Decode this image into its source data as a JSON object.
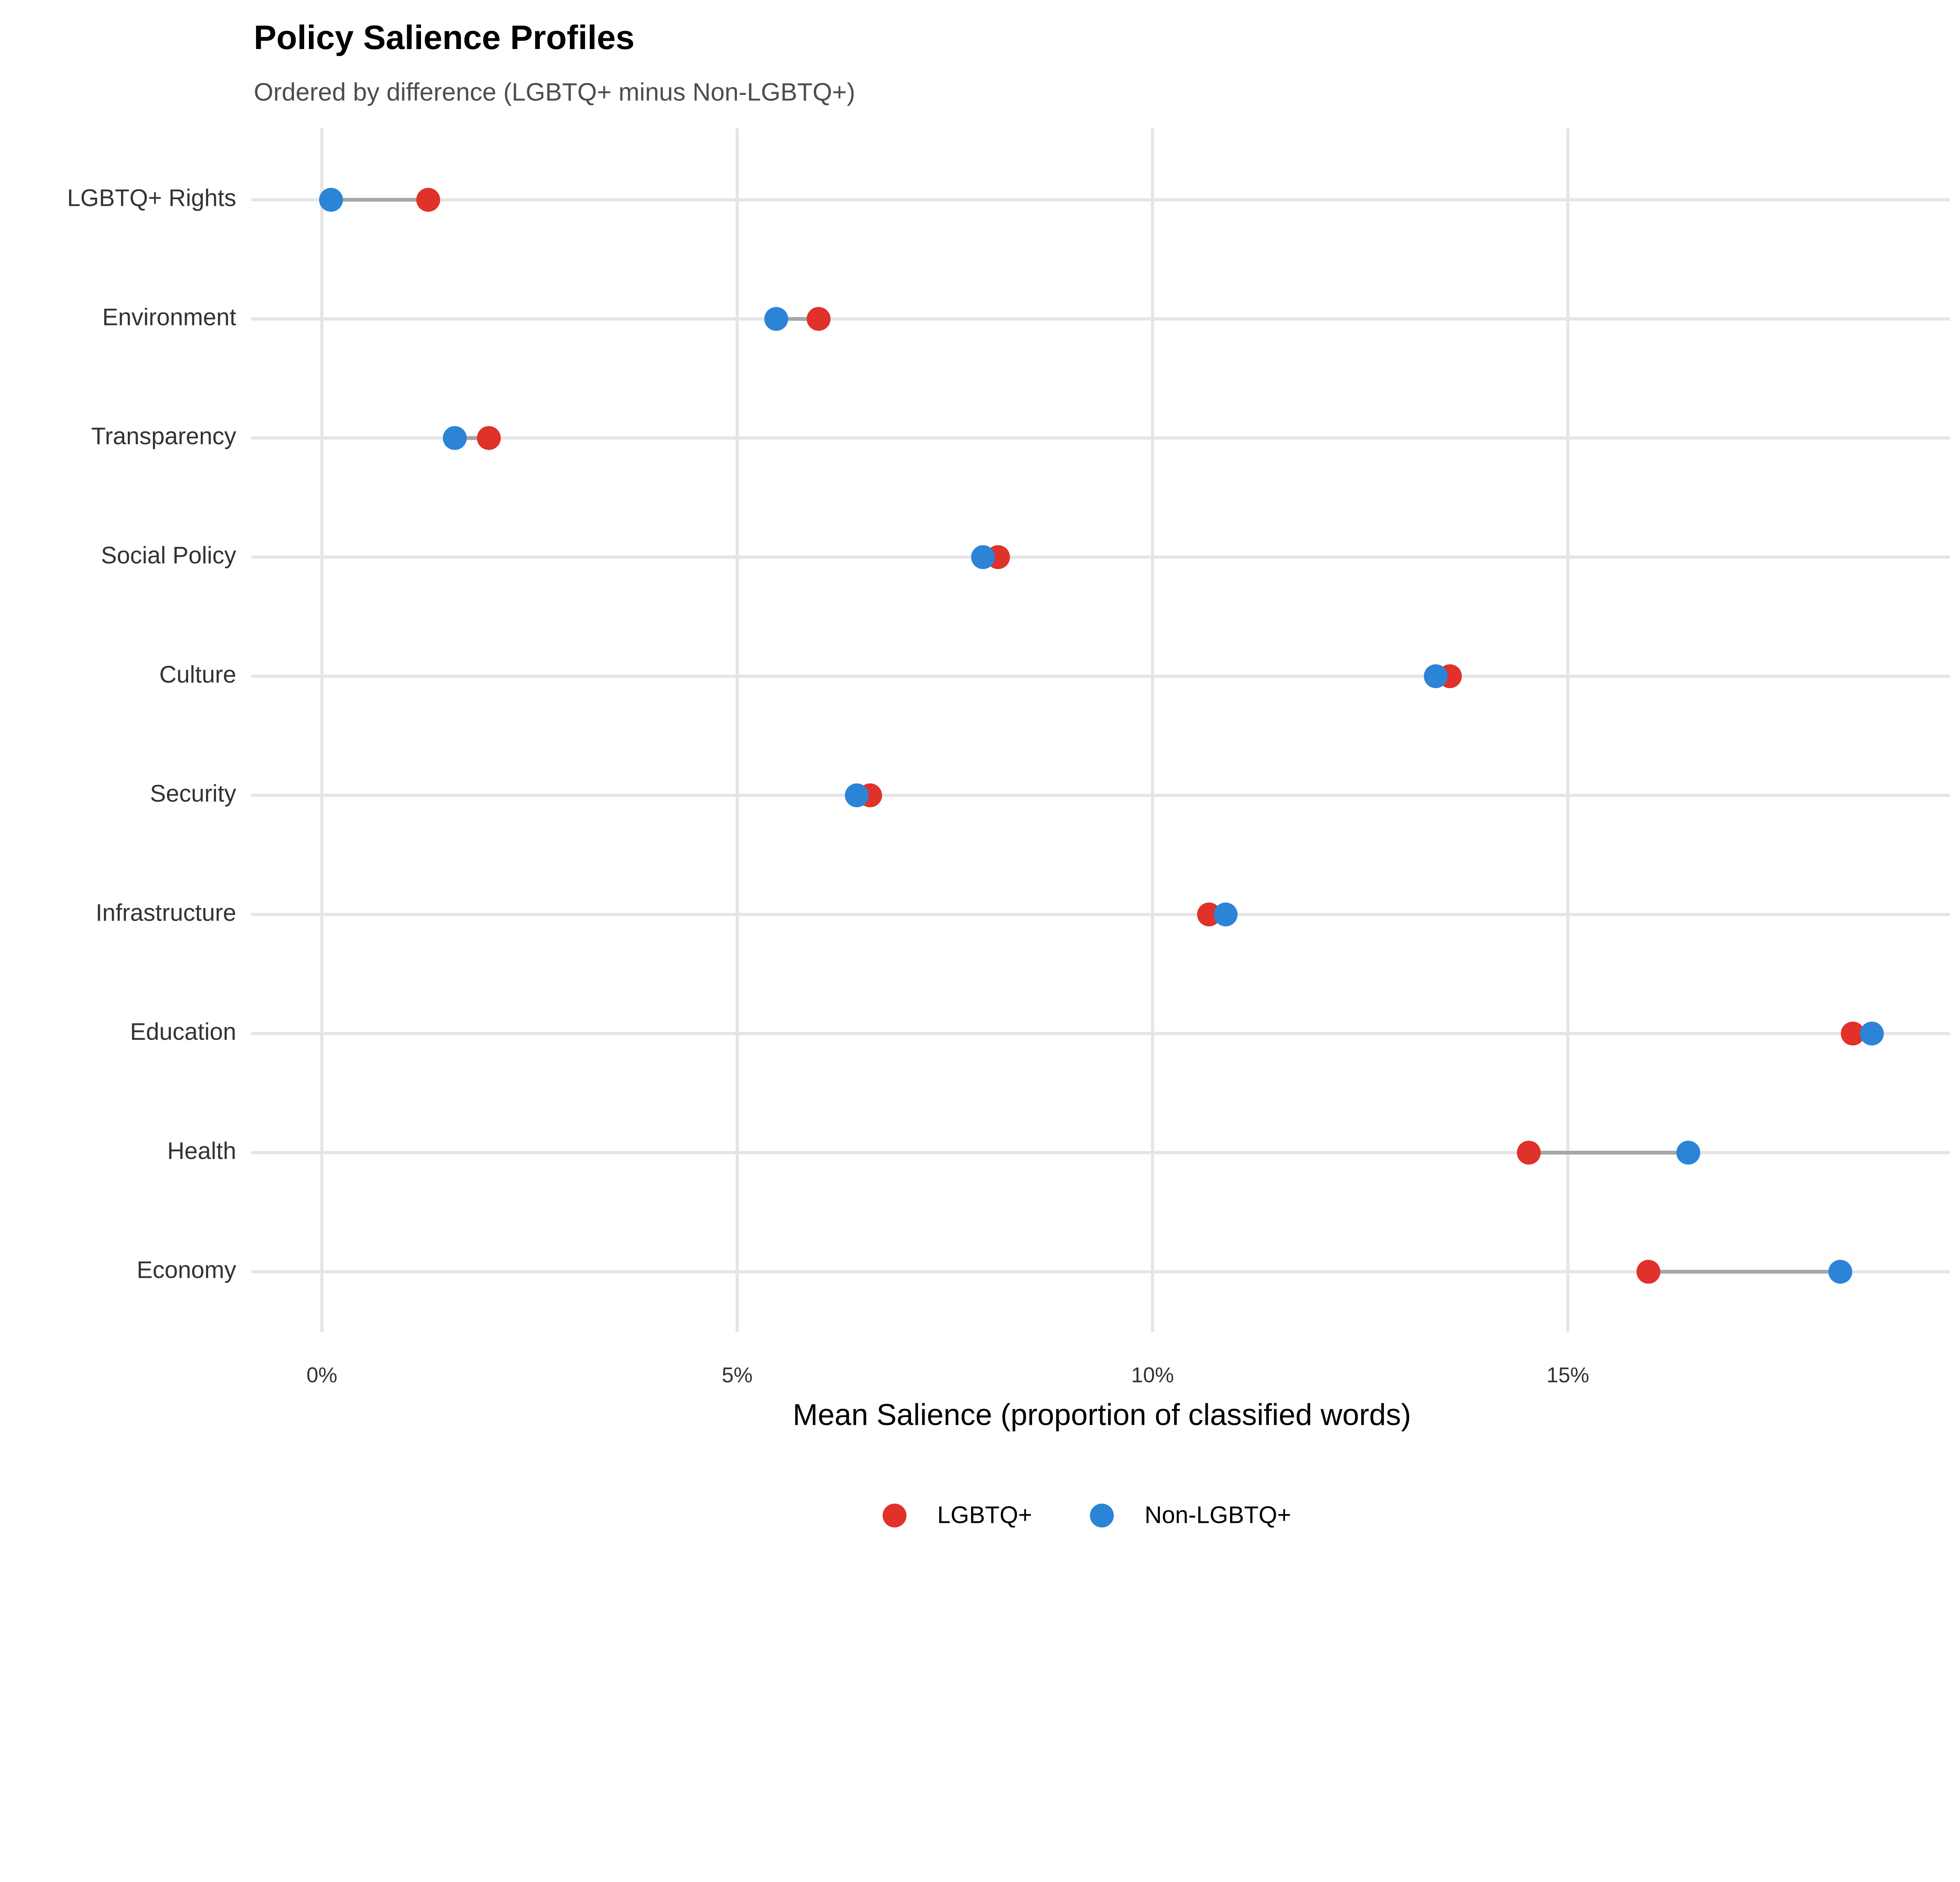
{
  "chart_data": {
    "type": "dumbbell",
    "title": "Policy Salience Profiles",
    "subtitle": "Ordered by difference (LGBTQ+ minus Non-LGBTQ+)",
    "xlabel": "Mean Salience (proportion of classified words)",
    "ylabel": "",
    "xlim": [
      -0.85,
      19.6
    ],
    "x_ticks": [
      0,
      5,
      10,
      15
    ],
    "x_tick_labels": [
      "0%",
      "5%",
      "10%",
      "15%"
    ],
    "grid": true,
    "legend_position": "bottom",
    "categories": [
      "LGBTQ+ Rights",
      "Environment",
      "Transparency",
      "Social Policy",
      "Culture",
      "Security",
      "Infrastructure",
      "Education",
      "Health",
      "Economy"
    ],
    "series": [
      {
        "name": "LGBTQ+",
        "color": "#e0312b",
        "values": [
          1.28,
          5.98,
          2.01,
          8.14,
          13.58,
          6.6,
          10.68,
          18.43,
          14.53,
          15.97
        ]
      },
      {
        "name": "Non-LGBTQ+",
        "color": "#2b84d6",
        "values": [
          0.11,
          5.47,
          1.6,
          7.96,
          13.41,
          6.44,
          10.88,
          18.66,
          16.45,
          18.28
        ]
      }
    ],
    "segment_color": "#a6a6a6"
  }
}
